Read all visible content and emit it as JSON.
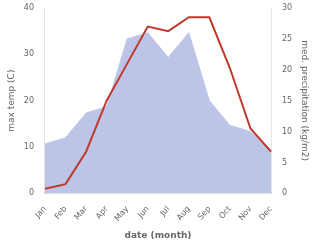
{
  "chart_data": {
    "type": "line",
    "xlabel": "date (month)",
    "ylabel": "max temp (C)",
    "y2label": "med. precipitation (kg/m2)",
    "categories": [
      "Jan",
      "Feb",
      "Mar",
      "Apr",
      "May",
      "Jun",
      "Jul",
      "Aug",
      "Sep",
      "Oct",
      "Nov",
      "Dec"
    ],
    "series": [
      {
        "type": "line",
        "axis": "y",
        "color": "#c0392b",
        "values": [
          1,
          2,
          9,
          20,
          28,
          36,
          35,
          38,
          38,
          27,
          14,
          9
        ]
      },
      {
        "type": "area",
        "axis": "y2",
        "color": "#bcc5e8",
        "values": [
          8,
          9,
          13,
          14,
          25,
          26,
          22,
          26,
          15,
          11,
          10,
          7
        ]
      }
    ],
    "ylim": [
      0,
      40
    ],
    "yticks": [
      0,
      10,
      20,
      30,
      40
    ],
    "y2lim": [
      0,
      30
    ],
    "y2ticks": [
      0,
      5,
      10,
      15,
      20,
      25,
      30
    ],
    "grid": false
  }
}
